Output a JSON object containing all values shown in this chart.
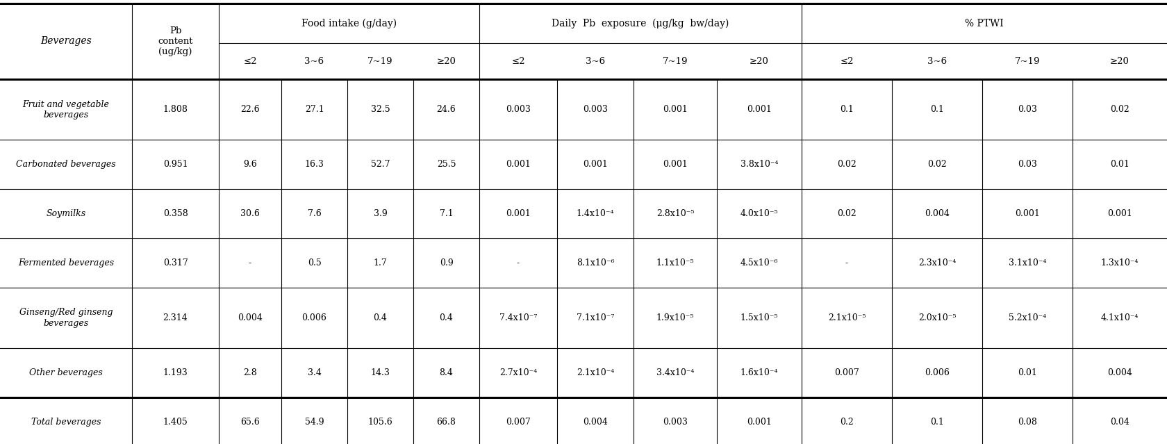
{
  "rows": [
    [
      "Fruit and vegetable\nbeverages",
      "1.808",
      "22.6",
      "27.1",
      "32.5",
      "24.6",
      "0.003",
      "0.003",
      "0.001",
      "0.001",
      "0.1",
      "0.1",
      "0.03",
      "0.02"
    ],
    [
      "Carbonated beverages",
      "0.951",
      "9.6",
      "16.3",
      "52.7",
      "25.5",
      "0.001",
      "0.001",
      "0.001",
      "3.8x10⁻⁴",
      "0.02",
      "0.02",
      "0.03",
      "0.01"
    ],
    [
      "Soymilks",
      "0.358",
      "30.6",
      "7.6",
      "3.9",
      "7.1",
      "0.001",
      "1.4x10⁻⁴",
      "2.8x10⁻⁵",
      "4.0x10⁻⁵",
      "0.02",
      "0.004",
      "0.001",
      "0.001"
    ],
    [
      "Fermented beverages",
      "0.317",
      "-",
      "0.5",
      "1.7",
      "0.9",
      "-",
      "8.1x10⁻⁶",
      "1.1x10⁻⁵",
      "4.5x10⁻⁶",
      "-",
      "2.3x10⁻⁴",
      "3.1x10⁻⁴",
      "1.3x10⁻⁴"
    ],
    [
      "Ginseng/Red ginseng\nbeverages",
      "2.314",
      "0.004",
      "0.006",
      "0.4",
      "0.4",
      "7.4x10⁻⁷",
      "7.1x10⁻⁷",
      "1.9x10⁻⁵",
      "1.5x10⁻⁵",
      "2.1x10⁻⁵",
      "2.0x10⁻⁵",
      "5.2x10⁻⁴",
      "4.1x10⁻⁴"
    ],
    [
      "Other beverages",
      "1.193",
      "2.8",
      "3.4",
      "14.3",
      "8.4",
      "2.7x10⁻⁴",
      "2.1x10⁻⁴",
      "3.4x10⁻⁴",
      "1.6x10⁻⁴",
      "0.007",
      "0.006",
      "0.01",
      "0.004"
    ],
    [
      "Total beverages",
      "1.405",
      "65.6",
      "54.9",
      "105.6",
      "66.8",
      "0.007",
      "0.004",
      "0.003",
      "0.001",
      "0.2",
      "0.1",
      "0.08",
      "0.04"
    ]
  ],
  "bg_color": "#ffffff",
  "font_size": 9.0,
  "header_font_size": 10.0,
  "age_font_size": 9.5
}
